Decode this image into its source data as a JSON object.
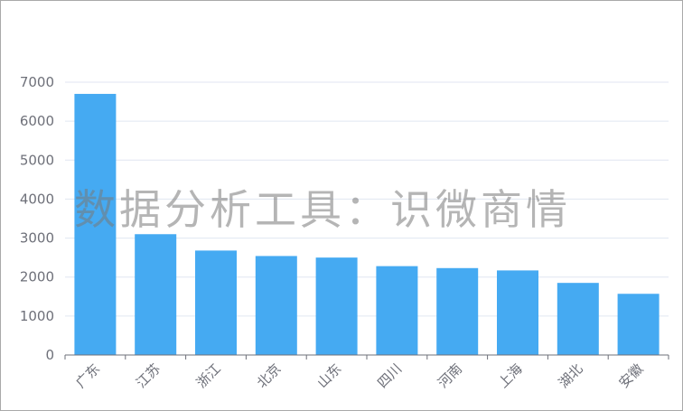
{
  "chart_data": {
    "type": "bar",
    "title": "",
    "xlabel": "",
    "ylabel": "",
    "categories": [
      "广东",
      "江苏",
      "浙江",
      "北京",
      "山东",
      "四川",
      "河南",
      "上海",
      "湖北",
      "安徽"
    ],
    "values": [
      6700,
      3100,
      2680,
      2540,
      2500,
      2280,
      2230,
      2170,
      1850,
      1570
    ],
    "ylim": [
      0,
      7000
    ],
    "yticks": [
      0,
      1000,
      2000,
      3000,
      4000,
      5000,
      6000,
      7000
    ],
    "grid": true,
    "bar_color": "#45aaf2",
    "grid_color": "#e0e6f1"
  },
  "watermark": "数据分析工具：识微商情"
}
